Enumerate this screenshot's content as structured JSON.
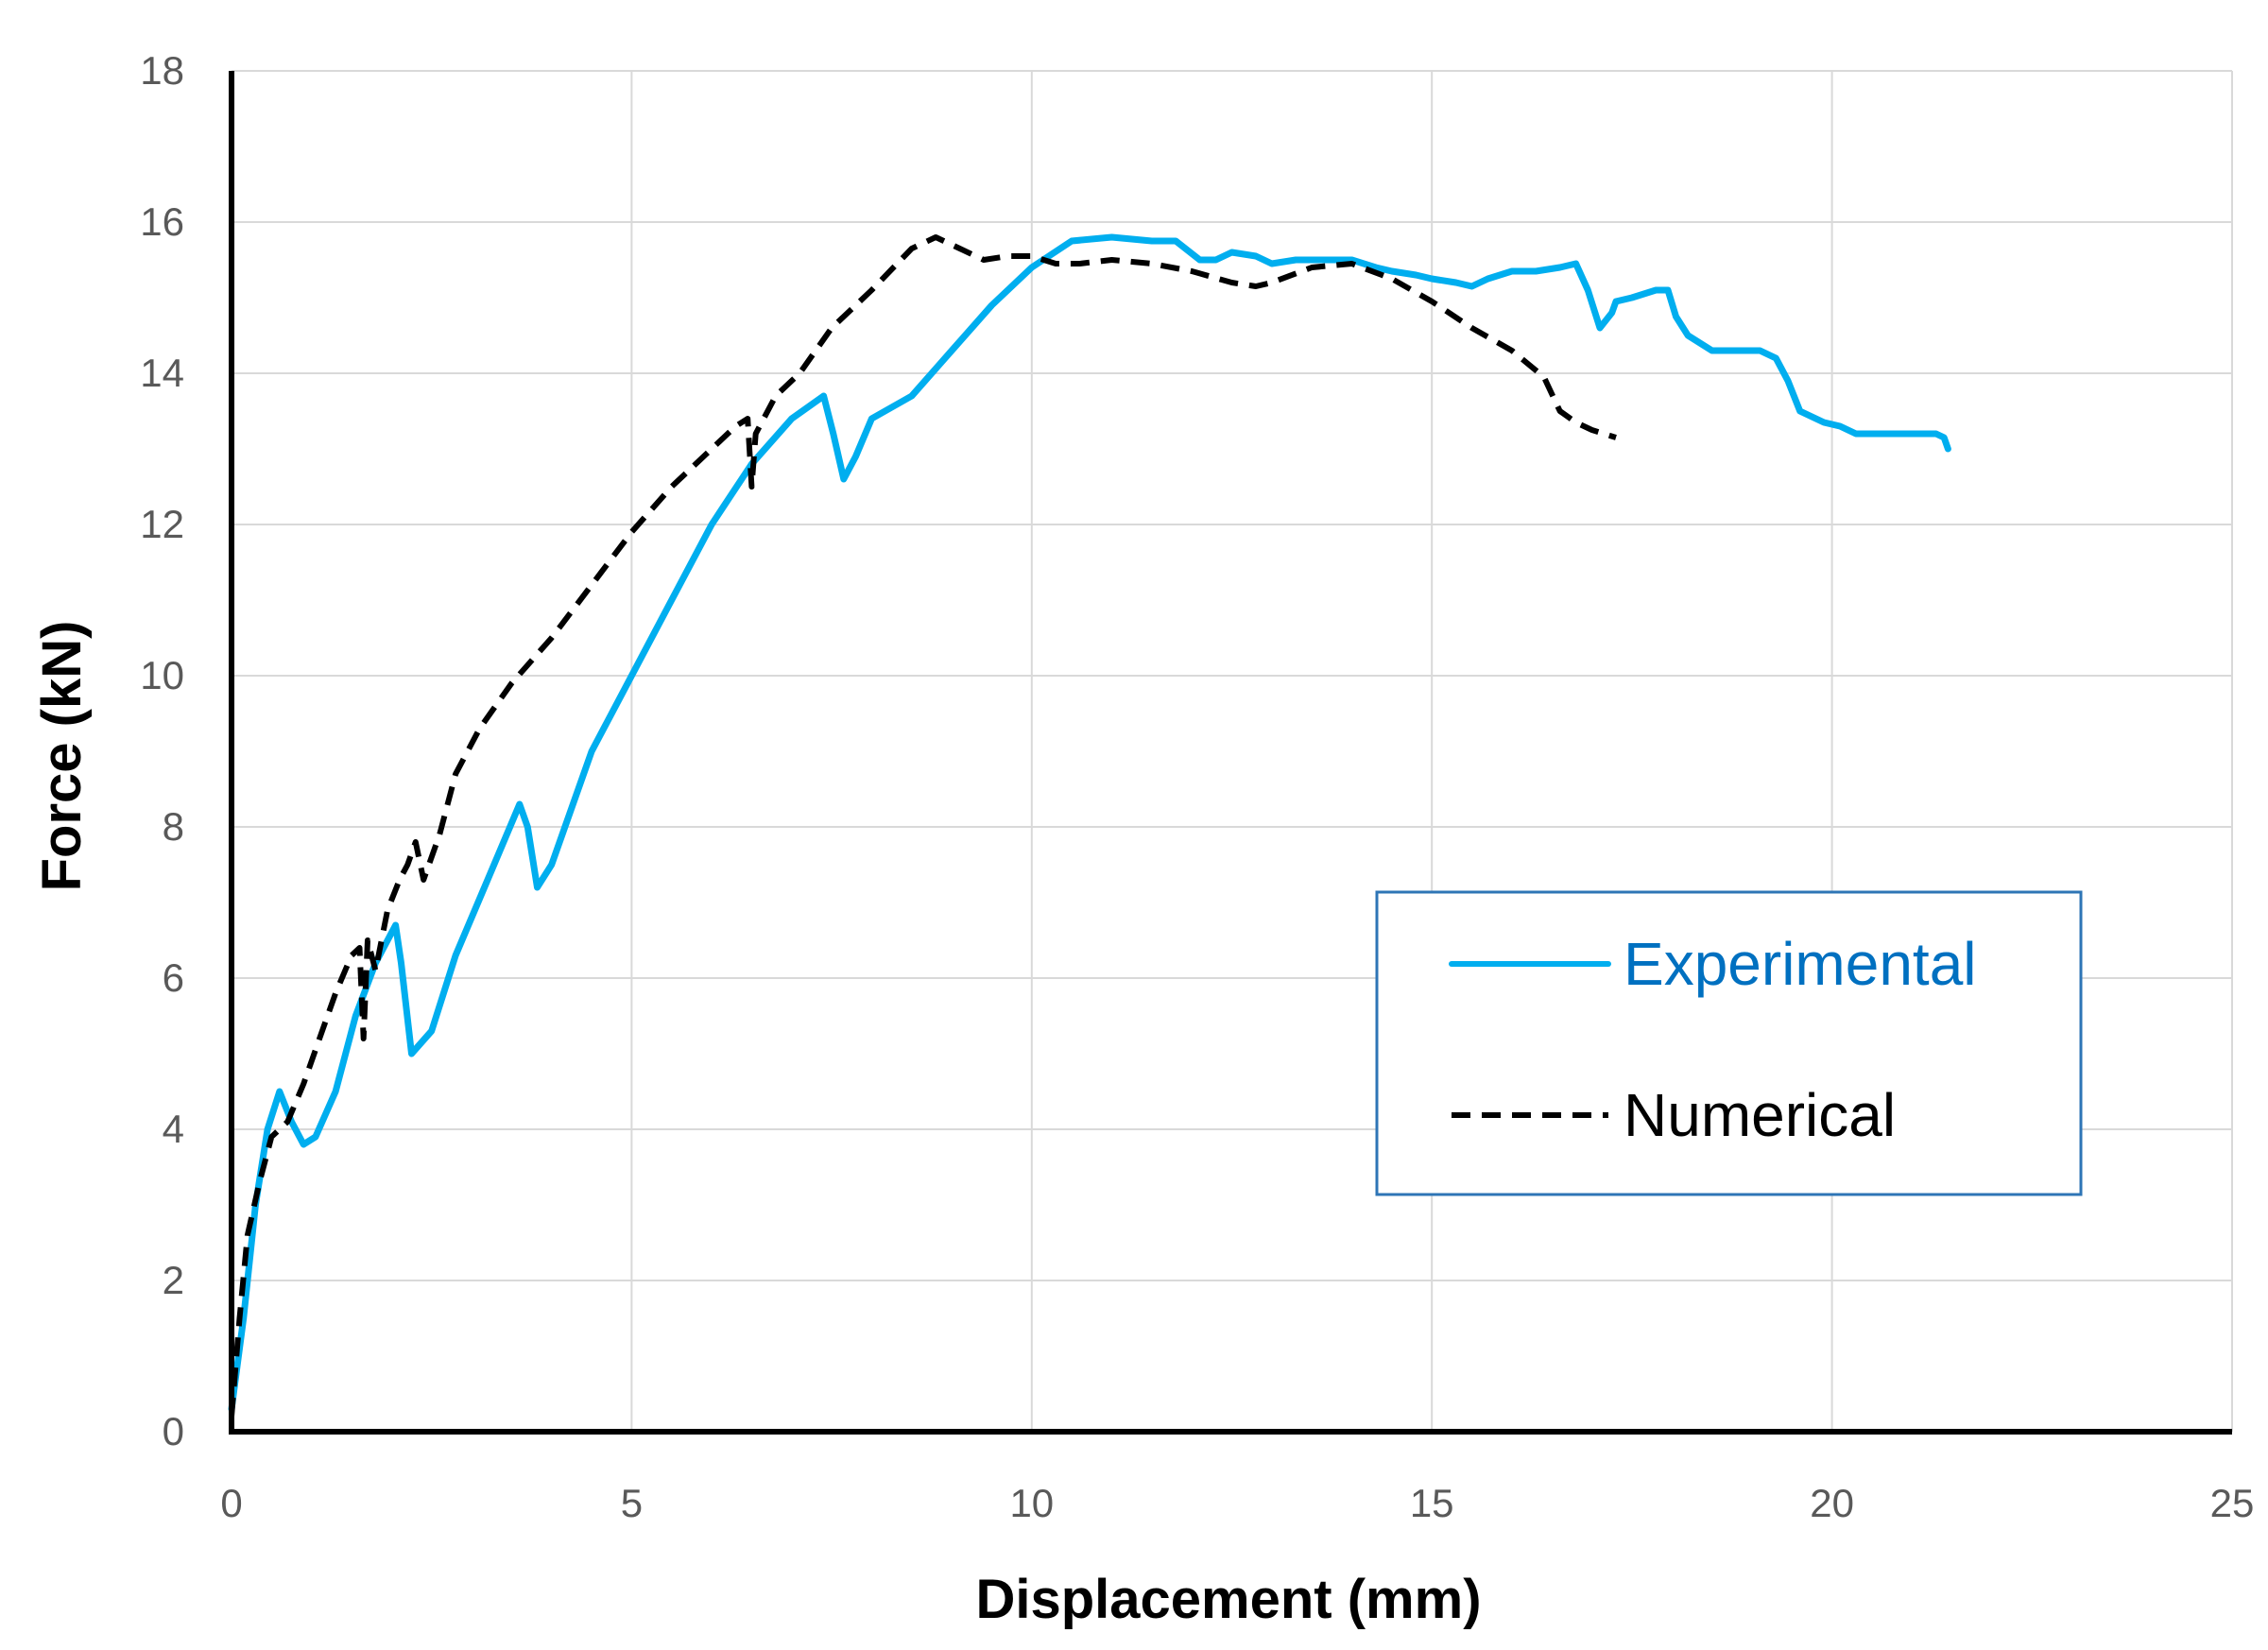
{
  "chart_data": {
    "type": "line",
    "title": "",
    "xlabel": "Displacement (mm)",
    "ylabel": "Force (kN)",
    "xlim": [
      0,
      25
    ],
    "ylim": [
      0,
      18
    ],
    "xticks": [
      0,
      5,
      10,
      15,
      20,
      25
    ],
    "yticks": [
      0,
      2,
      4,
      6,
      8,
      10,
      12,
      14,
      16,
      18
    ],
    "xtick_labels": [
      "0",
      "5",
      "10",
      "15",
      "20",
      "25"
    ],
    "ytick_labels": [
      "0",
      "2",
      "4",
      "6",
      "8",
      "10",
      "12",
      "14",
      "16",
      "18"
    ],
    "grid": true,
    "legend_position": "center-right",
    "series": [
      {
        "name": "Experimental",
        "color": "#00AEEF",
        "line_style": "solid",
        "legend_text_color": "#0070C0",
        "x": [
          0,
          0.15,
          0.3,
          0.45,
          0.6,
          0.75,
          0.9,
          1.05,
          1.3,
          1.55,
          1.8,
          2.05,
          2.12,
          2.25,
          2.5,
          2.8,
          3.2,
          3.6,
          3.7,
          3.82,
          4.0,
          4.5,
          5.0,
          5.5,
          6.0,
          6.5,
          7.0,
          7.4,
          7.52,
          7.65,
          7.8,
          8.0,
          8.5,
          9.0,
          9.5,
          10.0,
          10.5,
          11.0,
          11.5,
          11.8,
          12.1,
          12.3,
          12.5,
          12.8,
          13.0,
          13.3,
          13.6,
          14.0,
          14.3,
          14.5,
          14.8,
          15.0,
          15.3,
          15.5,
          15.7,
          16.0,
          16.3,
          16.6,
          16.8,
          16.95,
          17.1,
          17.25,
          17.3,
          17.5,
          17.8,
          17.95,
          18.05,
          18.2,
          18.5,
          18.8,
          19.1,
          19.3,
          19.45,
          19.6,
          19.9,
          20.1,
          20.3,
          20.5,
          20.8,
          21.1,
          21.3,
          21.4,
          21.45
        ],
        "y": [
          0.3,
          1.5,
          3.0,
          4.0,
          4.5,
          4.1,
          3.8,
          3.9,
          4.5,
          5.5,
          6.2,
          6.7,
          6.2,
          5.0,
          5.3,
          6.3,
          7.3,
          8.3,
          8.0,
          7.2,
          7.5,
          9.0,
          10.0,
          11.0,
          12.0,
          12.8,
          13.4,
          13.7,
          13.2,
          12.6,
          12.9,
          13.4,
          13.7,
          14.3,
          14.9,
          15.4,
          15.75,
          15.8,
          15.75,
          15.75,
          15.5,
          15.5,
          15.6,
          15.55,
          15.45,
          15.5,
          15.5,
          15.5,
          15.4,
          15.35,
          15.3,
          15.25,
          15.2,
          15.15,
          15.25,
          15.35,
          15.35,
          15.4,
          15.45,
          15.1,
          14.6,
          14.8,
          14.95,
          15.0,
          15.1,
          15.1,
          14.75,
          14.5,
          14.3,
          14.3,
          14.3,
          14.2,
          13.9,
          13.5,
          13.35,
          13.3,
          13.2,
          13.2,
          13.2,
          13.2,
          13.2,
          13.15,
          13.0
        ]
      },
      {
        "name": "Numerical",
        "color": "#000000",
        "line_style": "dashed",
        "legend_text_color": "#000000",
        "x": [
          0,
          0.1,
          0.2,
          0.35,
          0.5,
          0.7,
          0.9,
          1.1,
          1.3,
          1.5,
          1.6,
          1.65,
          1.7,
          1.8,
          1.95,
          2.1,
          2.2,
          2.3,
          2.4,
          2.6,
          2.8,
          3.1,
          3.5,
          4.0,
          4.5,
          5.0,
          5.5,
          6.0,
          6.3,
          6.45,
          6.5,
          6.55,
          6.6,
          6.8,
          7.1,
          7.5,
          8.0,
          8.5,
          8.8,
          9.1,
          9.4,
          9.7,
          10.0,
          10.3,
          10.6,
          11.0,
          11.5,
          12.0,
          12.5,
          12.8,
          13.0,
          13.5,
          14.0,
          14.5,
          15.0,
          15.5,
          16.0,
          16.4,
          16.6,
          16.8,
          17.0,
          17.3
        ],
        "y": [
          0.2,
          1.5,
          2.6,
          3.3,
          3.9,
          4.1,
          4.6,
          5.2,
          5.8,
          6.3,
          6.4,
          5.2,
          6.5,
          6.1,
          6.9,
          7.3,
          7.5,
          7.8,
          7.3,
          7.9,
          8.7,
          9.3,
          9.9,
          10.5,
          11.2,
          11.9,
          12.5,
          13.0,
          13.3,
          13.4,
          12.5,
          13.2,
          13.3,
          13.7,
          14.0,
          14.6,
          15.1,
          15.65,
          15.8,
          15.65,
          15.5,
          15.55,
          15.55,
          15.45,
          15.45,
          15.5,
          15.45,
          15.35,
          15.2,
          15.15,
          15.2,
          15.4,
          15.45,
          15.25,
          14.95,
          14.6,
          14.3,
          13.95,
          13.5,
          13.35,
          13.25,
          13.15
        ]
      }
    ]
  }
}
